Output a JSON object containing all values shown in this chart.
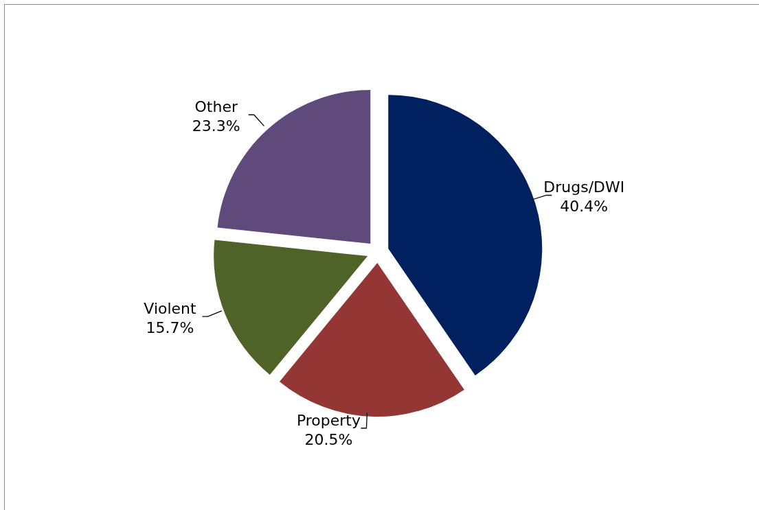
{
  "chart_data": {
    "type": "pie",
    "categories": [
      "Drugs/DWI",
      "Property",
      "Violent",
      "Other"
    ],
    "values": [
      40.4,
      20.5,
      15.7,
      23.3
    ],
    "value_labels": [
      "40.4%",
      "20.5%",
      "15.7%",
      "23.3%"
    ],
    "colors": [
      "#002060",
      "#943634",
      "#4f6228",
      "#604a7b"
    ]
  }
}
